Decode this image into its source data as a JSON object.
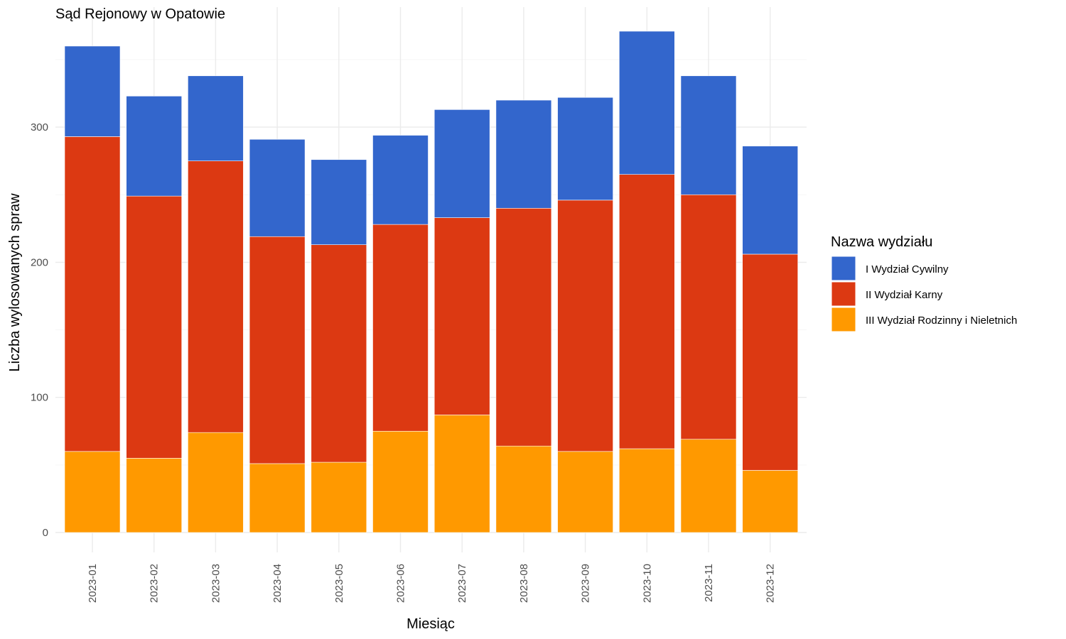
{
  "chart_data": {
    "type": "bar",
    "stacked": true,
    "title": "Sąd Rejonowy w Opatowie",
    "xlabel": "Miesiąc",
    "ylabel": "Liczba wylosowanych spraw",
    "ylim": [
      0,
      380
    ],
    "yticks": [
      0,
      100,
      200,
      300
    ],
    "grid": true,
    "legend_title": "Nazwa wydziału",
    "legend_position": "right",
    "categories": [
      "2023-01",
      "2023-02",
      "2023-03",
      "2023-04",
      "2023-05",
      "2023-06",
      "2023-07",
      "2023-08",
      "2023-09",
      "2023-10",
      "2023-11",
      "2023-12"
    ],
    "series": [
      {
        "name": "III Wydział Rodzinny i Nieletnich",
        "color": "#ff9900",
        "values": [
          60,
          55,
          74,
          51,
          52,
          75,
          87,
          64,
          60,
          62,
          69,
          46
        ]
      },
      {
        "name": "II Wydział Karny",
        "color": "#dc3912",
        "values": [
          233,
          194,
          201,
          168,
          161,
          153,
          146,
          176,
          186,
          203,
          181,
          160
        ]
      },
      {
        "name": "I Wydział Cywilny",
        "color": "#3366cc",
        "values": [
          67,
          74,
          63,
          72,
          63,
          66,
          80,
          80,
          76,
          106,
          88,
          80
        ]
      }
    ],
    "legend_order": [
      "I Wydział Cywilny",
      "II Wydział Karny",
      "III Wydział Rodzinny i Nieletnich"
    ]
  }
}
